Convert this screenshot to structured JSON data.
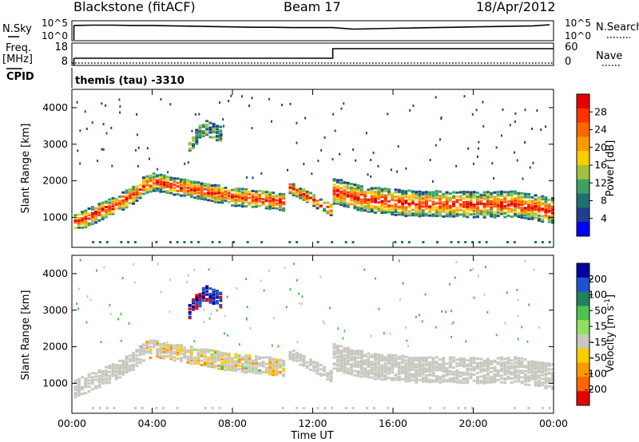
{
  "header": {
    "title": "Blackstone (fitACF)",
    "beam": "Beam 17",
    "date": "18/Apr/2012"
  },
  "noise_panel": {
    "left_label": "N.Sky",
    "left_ticks": [
      "10^5",
      "10^0"
    ],
    "right_label": "N.Search",
    "right_ticks": [
      "10^5",
      "10^0"
    ]
  },
  "freq_panel": {
    "left_label_line1": "Freq.",
    "left_label_line2": "[MHz]",
    "left_ticks": [
      "18",
      "8"
    ],
    "right_label": "Nave",
    "right_ticks": [
      "60",
      "0"
    ],
    "cpid_label": "CPID",
    "program": "themis (tau) -3310"
  },
  "chart_data": [
    {
      "type": "line",
      "name": "noise",
      "series": [
        {
          "name": "N.Sky",
          "style": "solid",
          "x": [
            0.1,
            1,
            2,
            3,
            4,
            5,
            6,
            7,
            8,
            9,
            10,
            11,
            12,
            13,
            14,
            15,
            16,
            17,
            18,
            19,
            20,
            21,
            22,
            23,
            23.8
          ],
          "log_values": [
            4.2,
            4.3,
            4.3,
            4.2,
            4.2,
            4.1,
            4.0,
            3.9,
            3.8,
            3.7,
            3.7,
            3.6,
            3.6,
            3.6,
            3.2,
            3.3,
            3.4,
            3.5,
            3.6,
            3.7,
            3.8,
            3.9,
            4.0,
            4.1,
            4.4
          ]
        }
      ]
    },
    {
      "type": "line",
      "name": "frequency",
      "series": [
        {
          "name": "Freq.",
          "style": "solid",
          "x": [
            0.1,
            13.0,
            13.0,
            24
          ],
          "values": [
            10.5,
            10.5,
            16.5,
            16.5
          ]
        },
        {
          "name": "Nave",
          "style": "dotted",
          "x": [
            0,
            24
          ],
          "values": [
            2,
            2
          ]
        }
      ]
    },
    {
      "type": "heatmap",
      "name": "power",
      "xlabel": "",
      "ylabel": "Slant Range [km]",
      "xlim": [
        0,
        24
      ],
      "ylim": [
        180,
        4500
      ],
      "y_ticks": [
        "1000",
        "2000",
        "3000",
        "4000"
      ],
      "colorbar": {
        "label": "Power [dB]",
        "ticks": [
          "28",
          "24",
          "20",
          "16",
          "12",
          "8",
          "4"
        ],
        "colors": [
          "#e60000",
          "#ff3300",
          "#ff6600",
          "#ff9900",
          "#ffcc00",
          "#a0c040",
          "#40a060",
          "#207070",
          "#204090",
          "#0000ff"
        ]
      },
      "bands": [
        {
          "x": [
            0.1,
            1.0,
            2.0,
            3.0,
            3.5,
            4.0,
            5.0,
            6.0,
            7.0,
            8.0,
            9.0,
            10.0,
            10.5
          ],
          "y_center": [
            900,
            1100,
            1350,
            1650,
            1900,
            2000,
            1900,
            1800,
            1700,
            1600,
            1550,
            1500,
            1450
          ],
          "half_width": 230
        },
        {
          "x": [
            10.8,
            11.5,
            12.0,
            12.5,
            13.0
          ],
          "y_center": [
            1850,
            1650,
            1500,
            1350,
            1200
          ],
          "half_width": 150
        },
        {
          "x": [
            13.0,
            14.0,
            15.0,
            16.0,
            17.0,
            18.0,
            19.0,
            20.0,
            21.0,
            22.0,
            23.0,
            24.0
          ],
          "y_center": [
            1750,
            1600,
            1500,
            1450,
            1400,
            1400,
            1400,
            1380,
            1380,
            1400,
            1300,
            1200
          ],
          "half_width": 330
        },
        {
          "x": [
            5.8,
            6.2,
            6.6,
            7.0,
            7.4
          ],
          "y_center": [
            3000,
            3300,
            3500,
            3400,
            3300
          ],
          "half_width": 200
        }
      ]
    },
    {
      "type": "heatmap",
      "name": "velocity",
      "xlabel": "Time UT",
      "ylabel": "Slant Range [km]",
      "xlim": [
        0,
        24
      ],
      "ylim": [
        180,
        4500
      ],
      "x_ticks": [
        "00:00",
        "04:00",
        "08:00",
        "12:00",
        "16:00",
        "20:00",
        "00:00"
      ],
      "y_ticks": [
        "1000",
        "2000",
        "3000",
        "4000"
      ],
      "colorbar": {
        "label": "Velocity [m s^-1]",
        "ticks": [
          "200",
          "100",
          "50",
          "15",
          "-15",
          "-50",
          "-100",
          "-200"
        ],
        "colors": [
          "#0000a0",
          "#2050d0",
          "#208060",
          "#50c050",
          "#90e060",
          "#c8c8c0",
          "#ffcc00",
          "#ff9900",
          "#ff6600",
          "#e60000"
        ]
      },
      "bands": [
        {
          "x": [
            0.1,
            1.0,
            2.0,
            3.0,
            3.5,
            4.0,
            5.0,
            6.0,
            7.0,
            8.0,
            9.0,
            10.0,
            10.5
          ],
          "y_center": [
            900,
            1100,
            1350,
            1650,
            1900,
            2000,
            1900,
            1800,
            1700,
            1600,
            1550,
            1500,
            1450
          ],
          "half_width": 230
        },
        {
          "x": [
            10.8,
            11.5,
            12.0,
            12.5,
            13.0
          ],
          "y_center": [
            1850,
            1650,
            1500,
            1350,
            1200
          ],
          "half_width": 150
        },
        {
          "x": [
            13.0,
            14.0,
            15.0,
            16.0,
            17.0,
            18.0,
            19.0,
            20.0,
            21.0,
            22.0,
            23.0,
            24.0
          ],
          "y_center": [
            1750,
            1600,
            1500,
            1450,
            1400,
            1400,
            1400,
            1380,
            1380,
            1400,
            1300,
            1200
          ],
          "half_width": 330
        },
        {
          "x": [
            5.8,
            6.2,
            6.6,
            7.0,
            7.4
          ],
          "y_center": [
            3000,
            3300,
            3500,
            3400,
            3300
          ],
          "half_width": 200
        }
      ]
    }
  ]
}
